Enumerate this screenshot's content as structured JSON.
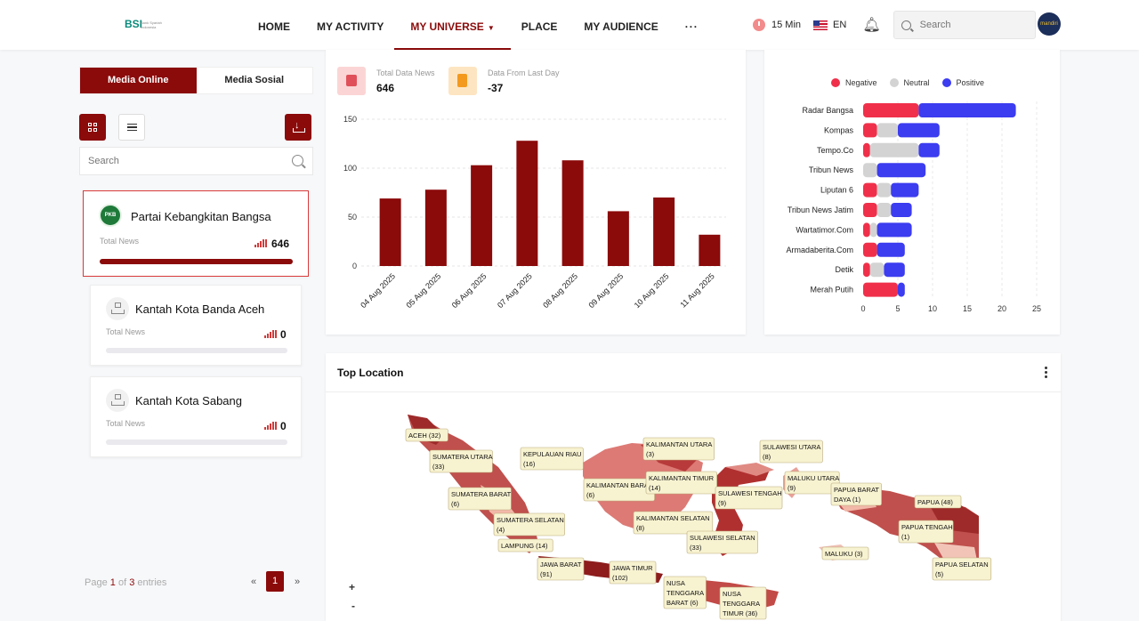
{
  "brand": {
    "logo_text": "BSI",
    "logo_sub": "Bank Syariah Indonesia"
  },
  "nav": {
    "items": [
      "HOME",
      "MY ACTIVITY",
      "MY UNIVERSE",
      "PLACE",
      "MY AUDIENCE"
    ],
    "active": "MY UNIVERSE",
    "more": "···"
  },
  "topbar": {
    "timer": "15 Min",
    "language": "EN",
    "search_placeholder": "Search",
    "avatar_text": "mandiri"
  },
  "left": {
    "tabs": [
      "Media Online",
      "Media Sosial"
    ],
    "active_tab": "Media Online",
    "search_placeholder": "Search",
    "cards": [
      {
        "name": "Partai Kebangkitan Bangsa",
        "label": "Total News",
        "value": "646",
        "progress": 1.0,
        "selected": true,
        "icon_text": "PKB"
      },
      {
        "name": "Kantah Kota Banda Aceh",
        "label": "Total News",
        "value": "0",
        "progress": 0,
        "selected": false
      },
      {
        "name": "Kantah Kota Sabang",
        "label": "Total News",
        "value": "0",
        "progress": 0,
        "selected": false
      }
    ],
    "pager": {
      "prefix": "Page",
      "page": "1",
      "of": "of",
      "total": "3",
      "suffix": "entries",
      "prev": "«",
      "next": "»",
      "current": "1"
    }
  },
  "stats": {
    "total_label": "Total Data News",
    "total_value": "646",
    "last_day_label": "Data From Last Day",
    "last_day_value": "-37"
  },
  "location": {
    "title": "Top Location",
    "zoom_in": "+",
    "zoom_out": "-"
  },
  "chart_data": [
    {
      "type": "bar",
      "categories": [
        "04 Aug 2025",
        "05 Aug 2025",
        "06 Aug 2025",
        "07 Aug 2025",
        "08 Aug 2025",
        "09 Aug 2025",
        "10 Aug 2025",
        "11 Aug 2025"
      ],
      "values": [
        69,
        78,
        103,
        128,
        108,
        56,
        70,
        32
      ],
      "ylim": [
        0,
        150
      ],
      "yticks": [
        0,
        50,
        100,
        150
      ],
      "color": "#8b0a0a",
      "grid": true
    },
    {
      "type": "bar",
      "orientation": "horizontal",
      "stacked": true,
      "categories": [
        "Radar Bangsa",
        "Kompas",
        "Tempo.Co",
        "Tribun News",
        "Liputan 6",
        "Tribun News Jatim",
        "Wartatimor.Com",
        "Armadaberita.Com",
        "Detik",
        "Merah Putih"
      ],
      "series": [
        {
          "name": "Negative",
          "color": "#f0304a",
          "values": [
            8,
            2,
            1,
            0,
            2,
            2,
            1,
            2,
            1,
            5
          ]
        },
        {
          "name": "Neutral",
          "color": "#d3d3d3",
          "values": [
            0,
            3,
            7,
            2,
            2,
            2,
            1,
            0,
            2,
            0
          ]
        },
        {
          "name": "Positive",
          "color": "#3c3cf0",
          "values": [
            14,
            6,
            3,
            7,
            4,
            3,
            5,
            4,
            3,
            1
          ]
        }
      ],
      "xlim": [
        0,
        25
      ],
      "xticks": [
        0,
        5,
        10,
        15,
        20,
        25
      ],
      "legend": "top"
    }
  ],
  "map_labels": [
    "ACEH (32)",
    "SUMATERA UTARA (33)",
    "KEPULAUAN RIAU (16)",
    "SUMATERA BARAT (6)",
    "SUMATERA SELATAN (4)",
    "LAMPUNG (14)",
    "KALIMANTAN UTARA (3)",
    "KALIMANTAN BARAT (6)",
    "KALIMANTAN TIMUR (14)",
    "KALIMANTAN SELATAN (8)",
    "SULAWESI UTARA (8)",
    "SULAWESI TENGAH (9)",
    "SULAWESI SELATAN (33)",
    "MALUKU UTARA (9)",
    "PAPUA BARAT DAYA (1)",
    "PAPUA (48)",
    "PAPUA TENGAH (1)",
    "PAPUA SELATAN (5)",
    "MALUKU (3)",
    "JAWA BARAT (91)",
    "JAWA TIMUR (102)",
    "NUSA TENGGARA BARAT (6)",
    "NUSA TENGGARA TIMUR (36)"
  ]
}
